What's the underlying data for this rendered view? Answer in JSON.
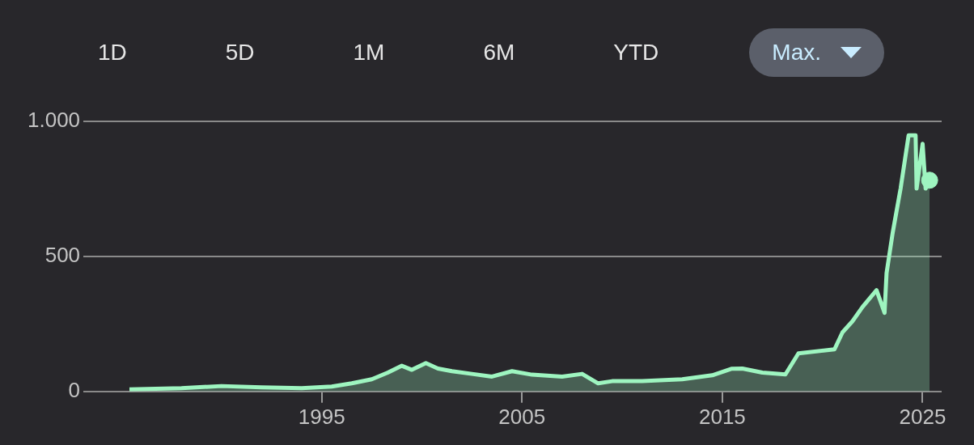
{
  "chart_data": {
    "type": "area",
    "annotations": [
      "1D",
      "5D",
      "1M",
      "6M",
      "YTD",
      "Max."
    ],
    "series": [
      {
        "color": "#9ef5c0",
        "x": [
          1985.4,
          1988,
          1990,
          1992,
          1994,
          1995.5,
          1996.5,
          1997.5,
          1998.3,
          1999,
          1999.5,
          2000.2,
          2000.8,
          2001.5,
          2002.5,
          2003.5,
          2004.5,
          2005.5,
          2007,
          2008,
          2008.8,
          2009.5,
          2011,
          2013,
          2014.5,
          2015.45,
          2016,
          2017,
          2018.15,
          2018.8,
          2020.6,
          2021,
          2021.5,
          2022,
          2022.7,
          2023.1,
          2023.2,
          2023.5,
          2023.9,
          2024.3,
          2024.65,
          2024.7,
          2025,
          2025.15,
          2025.35
        ],
        "values": [
          8,
          12,
          20,
          15,
          12,
          18,
          30,
          45,
          70,
          95,
          80,
          105,
          85,
          75,
          65,
          55,
          75,
          62,
          55,
          65,
          30,
          38,
          38,
          45,
          60,
          84,
          85,
          70,
          63,
          141,
          156,
          219,
          260,
          313,
          375,
          291,
          438,
          585,
          751,
          948,
          948,
          751,
          917,
          751,
          782
        ]
      },
      {
        "type": "scatter",
        "color": "#9ef5c0",
        "x": [
          2025.35
        ],
        "values": [
          782
        ]
      }
    ],
    "xlim": [
      1983.1,
      2025.95
    ],
    "xticks": [
      1995,
      2005,
      2015,
      2025
    ],
    "ylim": [
      0,
      1000
    ],
    "yticks": [
      0,
      500,
      {
        "value": 1000,
        "label": "1.000"
      }
    ],
    "grid": "y",
    "legend": false
  }
}
